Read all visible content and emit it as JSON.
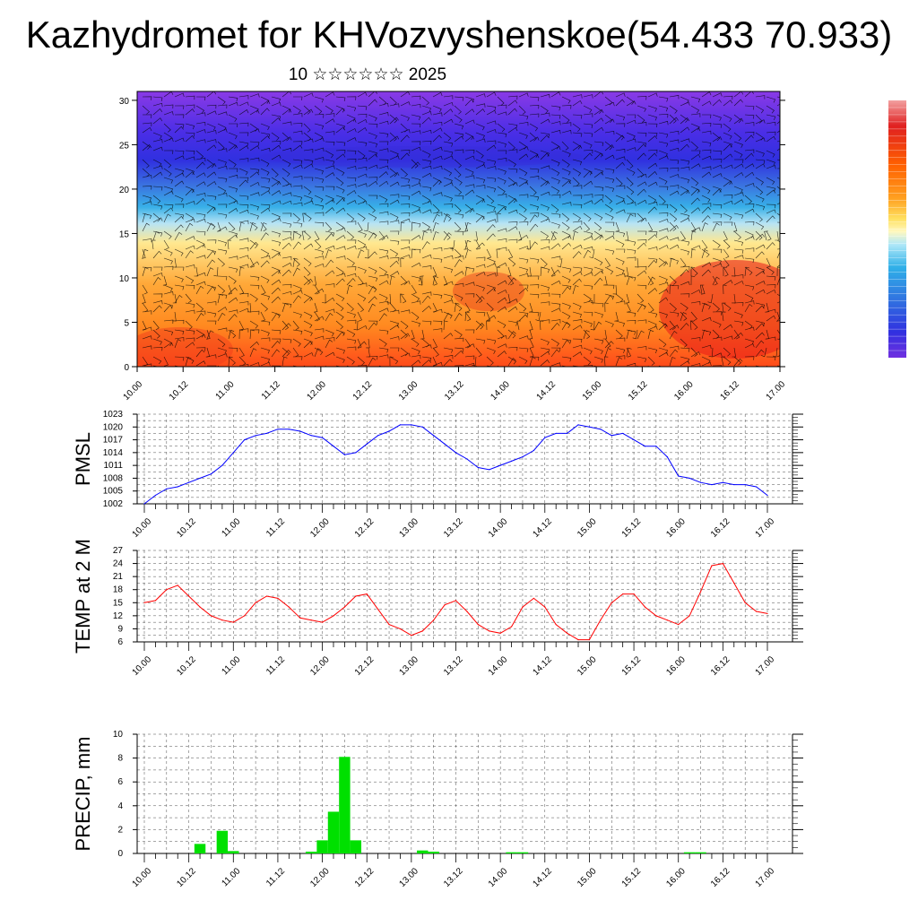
{
  "title": "Kazhydromet for KHVozvyshenskoe(54.433 70.933)",
  "subtitle": "10 ☆☆☆☆☆☆ 2025",
  "chart_data": [
    {
      "type": "heatmap",
      "panel": "cross-section",
      "ylim": [
        0,
        31
      ],
      "yticks": [
        0,
        5,
        10,
        15,
        20,
        25,
        30
      ],
      "x_tick_labels": [
        "10.00",
        "10.12",
        "11.00",
        "11.12",
        "12.00",
        "12.12",
        "13.00",
        "13.12",
        "14.00",
        "14.12",
        "15.00",
        "15.12",
        "16.00",
        "16.12",
        "17.00"
      ],
      "colorbar": [
        "#f2a0a0",
        "#e02020",
        "#ff6000",
        "#ffa020",
        "#ffe060",
        "#fff8c0",
        "#b0e8f8",
        "#30b0e8",
        "#3070e0",
        "#3030e0",
        "#7030e0"
      ],
      "overlay": "wind barbs"
    },
    {
      "type": "line",
      "panel": "pmsl",
      "ylabel": "PMSL",
      "ylim": [
        1002,
        1023
      ],
      "yticks": [
        1002,
        1005,
        1008,
        1011,
        1014,
        1017,
        1020,
        1023
      ],
      "x_tick_labels": [
        "10.00",
        "10.12",
        "11.00",
        "11.12",
        "12.00",
        "12.12",
        "13.00",
        "13.12",
        "14.00",
        "14.12",
        "15.00",
        "15.12",
        "16.00",
        "16.12",
        "17.00"
      ],
      "color": "#0000ff",
      "x": [
        0,
        3,
        6,
        9,
        12,
        15,
        18,
        21,
        24,
        27,
        30,
        33,
        36,
        39,
        42,
        45,
        48,
        51,
        54,
        57,
        60,
        63,
        66,
        69,
        72,
        75,
        78,
        81,
        84,
        87,
        90,
        93,
        96,
        99,
        102,
        105,
        108,
        111,
        114,
        117,
        120,
        123,
        126,
        129,
        132,
        135,
        138,
        141,
        144,
        147,
        150,
        153,
        156,
        159,
        162,
        165,
        168
      ],
      "values": [
        1002,
        1004,
        1005.5,
        1006,
        1007,
        1008,
        1009,
        1011,
        1014,
        1017,
        1018,
        1018.5,
        1019.5,
        1019.5,
        1019,
        1018,
        1017.5,
        1015.5,
        1013.5,
        1014,
        1016,
        1018,
        1019,
        1020.5,
        1020.5,
        1020,
        1018,
        1016,
        1014,
        1012.5,
        1010.5,
        1010,
        1011,
        1012,
        1013,
        1014.5,
        1017.5,
        1018.5,
        1018.5,
        1020.5,
        1020,
        1019.5,
        1018,
        1018.5,
        1017,
        1015.5,
        1015.5,
        1013,
        1008.5,
        1008,
        1007,
        1006.5,
        1007,
        1006.5,
        1006.5,
        1006,
        1004
      ]
    },
    {
      "type": "line",
      "panel": "temp",
      "ylabel": "TEMP at 2 M",
      "ylim": [
        6,
        27
      ],
      "yticks": [
        6,
        9,
        12,
        15,
        18,
        21,
        24,
        27
      ],
      "x_tick_labels": [
        "10.00",
        "10.12",
        "11.00",
        "11.12",
        "12.00",
        "12.12",
        "13.00",
        "13.12",
        "14.00",
        "14.12",
        "15.00",
        "15.12",
        "16.00",
        "16.12",
        "17.00"
      ],
      "color": "#ff0000",
      "x": [
        0,
        3,
        6,
        9,
        12,
        15,
        18,
        21,
        24,
        27,
        30,
        33,
        36,
        39,
        42,
        45,
        48,
        51,
        54,
        57,
        60,
        63,
        66,
        69,
        72,
        75,
        78,
        81,
        84,
        87,
        90,
        93,
        96,
        99,
        102,
        105,
        108,
        111,
        114,
        117,
        120,
        123,
        126,
        129,
        132,
        135,
        138,
        141,
        144,
        147,
        150,
        153,
        156,
        159,
        162,
        165,
        168
      ],
      "values": [
        15,
        15.5,
        18,
        19,
        16.5,
        14,
        12,
        11,
        10.5,
        12,
        15,
        16.5,
        16,
        14,
        11.5,
        11,
        10.5,
        12,
        14,
        16.5,
        17,
        13.5,
        10,
        9,
        7.5,
        8.5,
        11,
        14.5,
        15.5,
        13,
        10,
        8.5,
        8,
        9.5,
        14,
        16,
        14,
        10,
        8,
        6.5,
        6.5,
        11,
        15,
        17,
        17,
        14,
        12,
        11,
        10,
        12,
        17.5,
        23.5,
        24,
        19.5,
        15,
        13,
        12.5
      ]
    },
    {
      "type": "bar",
      "panel": "precip",
      "ylabel": "PRECIP, mm",
      "ylim": [
        0,
        10
      ],
      "yticks": [
        0,
        2,
        4,
        6,
        8,
        10
      ],
      "x_tick_labels": [
        "10.00",
        "10.12",
        "11.00",
        "11.12",
        "12.00",
        "12.12",
        "13.00",
        "13.12",
        "14.00",
        "14.12",
        "15.00",
        "15.12",
        "16.00",
        "16.12",
        "17.00"
      ],
      "color": "#00e000",
      "bars": [
        {
          "x": 15,
          "value": 0.8
        },
        {
          "x": 21,
          "value": 1.9
        },
        {
          "x": 24,
          "value": 0.2
        },
        {
          "x": 45,
          "value": 0.15
        },
        {
          "x": 48,
          "value": 1.1
        },
        {
          "x": 51,
          "value": 3.5
        },
        {
          "x": 54,
          "value": 8.1
        },
        {
          "x": 57,
          "value": 1.1
        },
        {
          "x": 75,
          "value": 0.25
        },
        {
          "x": 78,
          "value": 0.15
        },
        {
          "x": 99,
          "value": 0.1
        },
        {
          "x": 102,
          "value": 0.1
        },
        {
          "x": 147,
          "value": 0.1
        },
        {
          "x": 150,
          "value": 0.1
        }
      ]
    }
  ]
}
